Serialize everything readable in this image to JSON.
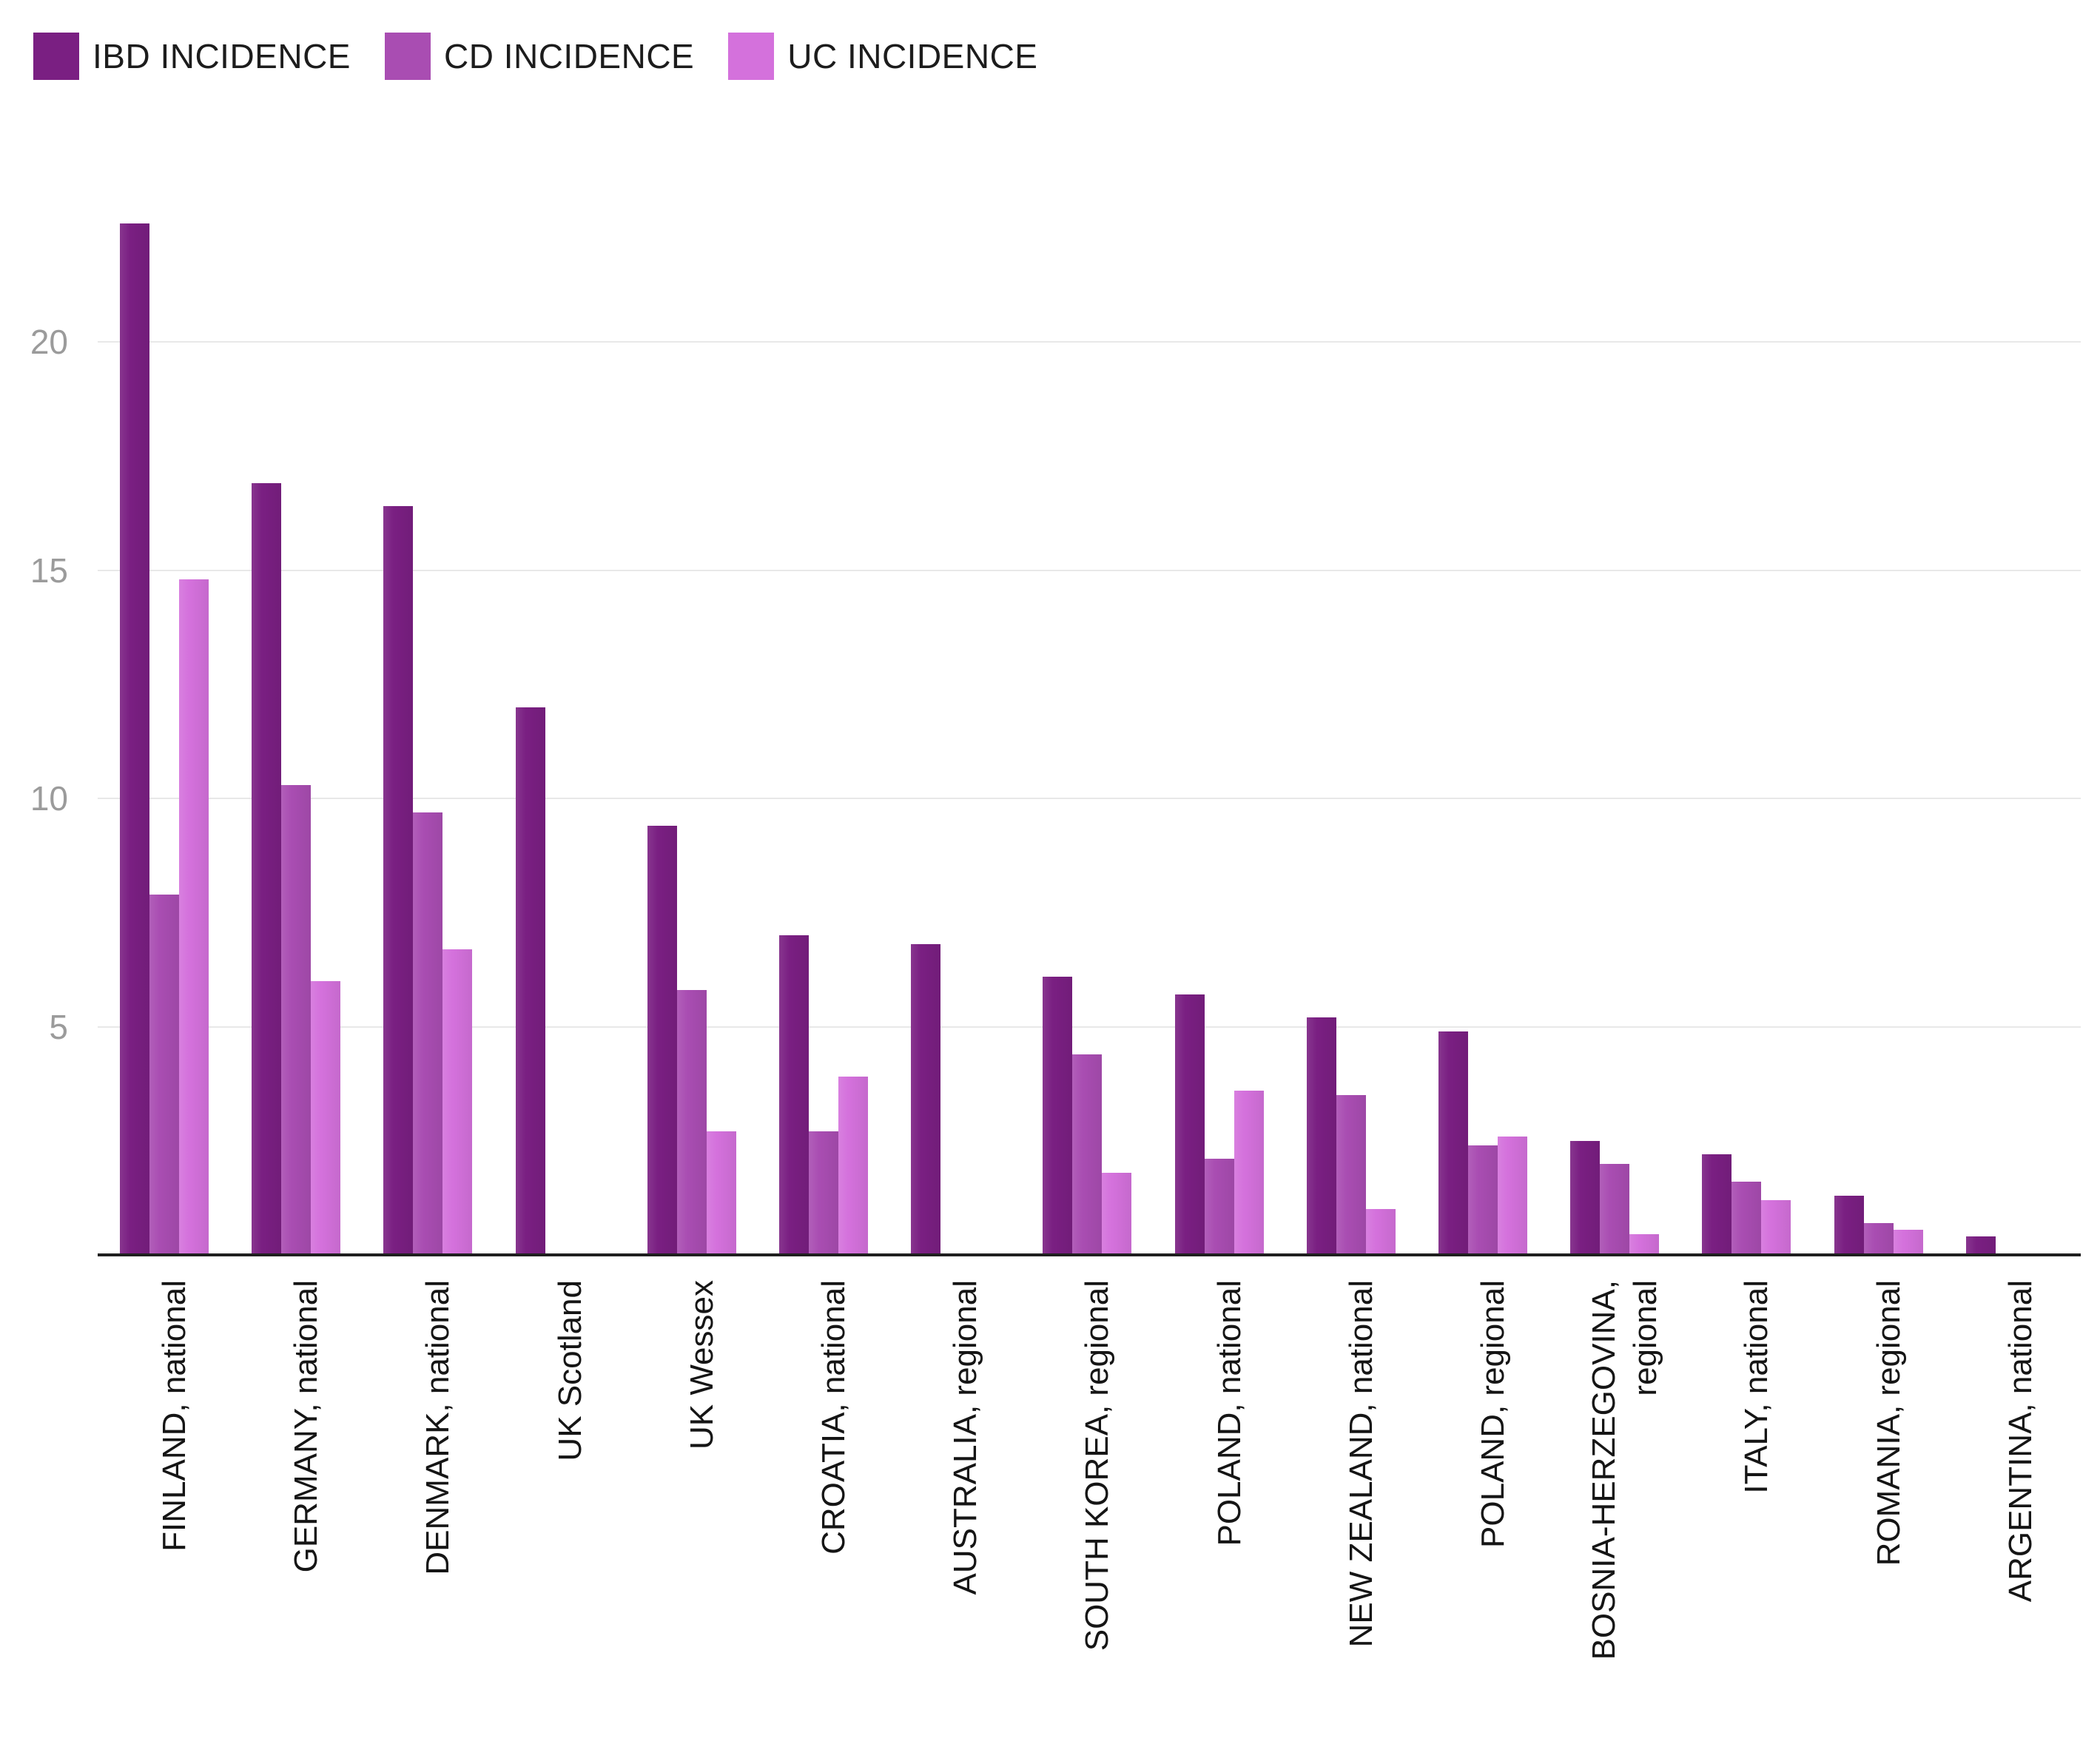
{
  "legend": {
    "items": [
      {
        "id": "ibd",
        "label": "IBD INCIDENCE",
        "color": "#7A1F82"
      },
      {
        "id": "cd",
        "label": "CD INCIDENCE",
        "color": "#A94DB2"
      },
      {
        "id": "uc",
        "label": "UC INCIDENCE",
        "color": "#D471DC"
      }
    ]
  },
  "y_axis": {
    "ticks": [
      20,
      15,
      10,
      5
    ]
  },
  "chart_data": {
    "type": "bar",
    "title": "",
    "xlabel": "",
    "ylabel": "",
    "ylim": [
      0,
      25
    ],
    "grid": "horizontal",
    "legend_position": "top-left",
    "categories": [
      "FINLAND, national",
      "GERMANY, national",
      "DENMARK, national",
      "UK Scotland",
      "UK Wessex",
      "CROATIA, national",
      "AUSTRALIA, regional",
      "SOUTH KOREA, regional",
      "POLAND, national",
      "NEW ZEALAND, national",
      "POLAND, regional",
      "BOSNIA-HERZEGOVINA, regional",
      "ITALY, national",
      "ROMANIA, regional",
      "ARGENTINA, national"
    ],
    "series": [
      {
        "name": "IBD INCIDENCE",
        "color": "#7A1F82",
        "values": [
          22.6,
          16.9,
          16.4,
          12.0,
          9.4,
          7.0,
          6.8,
          6.1,
          5.7,
          5.2,
          4.9,
          2.5,
          2.2,
          1.3,
          0.4
        ]
      },
      {
        "name": "CD INCIDENCE",
        "color": "#A94DB2",
        "values": [
          7.9,
          10.3,
          9.7,
          null,
          5.8,
          2.7,
          null,
          4.4,
          2.1,
          3.5,
          2.4,
          2.0,
          1.6,
          0.7,
          null
        ]
      },
      {
        "name": "UC INCIDENCE",
        "color": "#D471DC",
        "values": [
          14.8,
          6.0,
          6.7,
          null,
          2.7,
          3.9,
          null,
          1.8,
          3.6,
          1.0,
          2.6,
          0.45,
          1.2,
          0.55,
          null
        ]
      }
    ]
  }
}
